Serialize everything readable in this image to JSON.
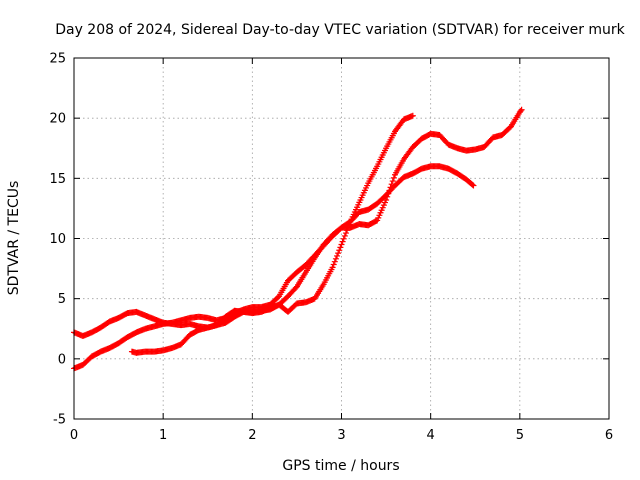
{
  "chart_data": {
    "type": "scatter",
    "title": "Day 208 of 2024, Sidereal Day-to-day VTEC variation (SDTVAR) for receiver murk",
    "xlabel": "GPS time / hours",
    "ylabel": "SDTVAR / TECUs",
    "xlim": [
      0,
      6
    ],
    "ylim": [
      -5,
      25
    ],
    "x_ticks": [
      "0",
      "1",
      "2",
      "3",
      "4",
      "5",
      "6"
    ],
    "y_ticks": [
      "-5",
      "0",
      "5",
      "10",
      "15",
      "20",
      "25"
    ],
    "grid": true,
    "marker": "plus",
    "color": "#ff0000",
    "series": [
      {
        "x": [
          0.0,
          0.1,
          0.2,
          0.3,
          0.4,
          0.5,
          0.6,
          0.7,
          0.8,
          0.9,
          1.0,
          1.1,
          1.2,
          1.3,
          1.4,
          1.5,
          1.6,
          1.7,
          1.8,
          1.9,
          2.0,
          2.1,
          2.2,
          2.3,
          2.4,
          2.5,
          2.6,
          2.7,
          2.8,
          2.9,
          3.0,
          3.1,
          3.2,
          3.3,
          3.4,
          3.5,
          3.6,
          3.7,
          3.8
        ],
        "y": [
          -0.8,
          -0.5,
          0.2,
          0.6,
          0.9,
          1.3,
          1.8,
          2.2,
          2.5,
          2.7,
          2.9,
          3.0,
          3.2,
          3.4,
          3.5,
          3.4,
          3.2,
          3.4,
          3.8,
          4.1,
          4.3,
          4.3,
          4.5,
          5.2,
          6.5,
          7.2,
          7.8,
          8.6,
          9.4,
          10.2,
          10.9,
          11.4,
          12.2,
          12.4,
          12.9,
          13.6,
          14.4,
          15.1,
          15.4
        ]
      },
      {
        "x": [
          3.8,
          3.9,
          4.0,
          4.1,
          4.2,
          4.3,
          4.4,
          4.48
        ],
        "y": [
          15.4,
          15.8,
          16.0,
          16.0,
          15.8,
          15.4,
          14.9,
          14.4
        ]
      },
      {
        "x": [
          0.0,
          0.1,
          0.2,
          0.3,
          0.4,
          0.5,
          0.6,
          0.7,
          0.8,
          0.9,
          1.0,
          1.1,
          1.2,
          1.3,
          1.4,
          1.5,
          1.6,
          1.7,
          1.8,
          1.9,
          2.0,
          2.1,
          2.2,
          2.3,
          2.4,
          2.5,
          2.6,
          2.7,
          2.8,
          2.9,
          3.0,
          3.1,
          3.2,
          3.3,
          3.4,
          3.5,
          3.6,
          3.7,
          3.8
        ],
        "y": [
          2.2,
          1.9,
          2.2,
          2.6,
          3.1,
          3.4,
          3.8,
          3.9,
          3.6,
          3.3,
          3.0,
          2.9,
          2.8,
          2.9,
          2.7,
          2.6,
          2.8,
          3.5,
          4.0,
          3.9,
          3.8,
          3.9,
          4.2,
          4.5,
          5.2,
          6.0,
          7.2,
          8.4,
          9.5,
          10.3,
          10.9,
          10.9,
          11.2,
          11.1,
          11.5,
          13.2,
          15.3,
          16.6,
          17.6
        ]
      },
      {
        "x": [
          3.8,
          3.9,
          4.0,
          4.1,
          4.2,
          4.3,
          4.4,
          4.5,
          4.6,
          4.7,
          4.8,
          4.9,
          5.0,
          5.02
        ],
        "y": [
          17.6,
          18.3,
          18.7,
          18.6,
          17.8,
          17.5,
          17.3,
          17.4,
          17.6,
          18.4,
          18.6,
          19.3,
          20.5,
          20.7
        ]
      },
      {
        "x": [
          0.65,
          0.7,
          0.8,
          0.9,
          1.0,
          1.1,
          1.2,
          1.3,
          1.4,
          1.5,
          1.6,
          1.7,
          1.8,
          1.9,
          2.0,
          2.1,
          2.2,
          2.3,
          2.4,
          2.5,
          2.6,
          2.7,
          2.8,
          2.9,
          3.0,
          3.1,
          3.2,
          3.3,
          3.4,
          3.5,
          3.6,
          3.7,
          3.8
        ],
        "y": [
          0.6,
          0.5,
          0.6,
          0.6,
          0.7,
          0.9,
          1.2,
          2.0,
          2.4,
          2.6,
          2.8,
          3.0,
          3.5,
          3.9,
          3.9,
          4.0,
          4.1,
          4.5,
          3.9,
          4.6,
          4.7,
          5.0,
          6.2,
          7.6,
          9.5,
          11.4,
          13.0,
          14.6,
          16.0,
          17.5,
          18.9,
          19.9,
          20.2
        ]
      }
    ]
  }
}
